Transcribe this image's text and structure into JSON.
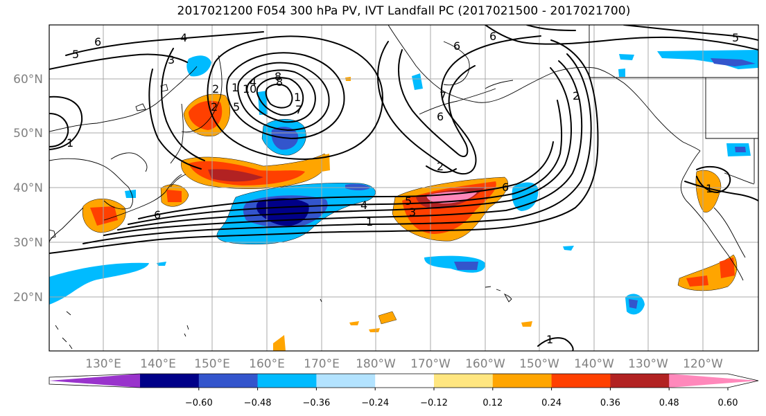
{
  "title": "2017021200 F054 300 hPa PV, IVT Landfall PC (2017021500 - 2017021700)",
  "map": {
    "lat_labels": [
      "60°N",
      "50°N",
      "40°N",
      "30°N",
      "20°N"
    ],
    "lon_labels": [
      "130°E",
      "140°E",
      "150°E",
      "160°E",
      "170°E",
      "180°W",
      "170°W",
      "160°W",
      "150°W",
      "140°W",
      "130°W",
      "120°W"
    ],
    "shaded_field": "IVT Landfall PC",
    "contour_field": "300 hPa PV",
    "contour_labels": [
      "6",
      "5",
      "4",
      "3",
      "2",
      "1",
      "5",
      "10",
      "7",
      "8",
      "6",
      "4",
      "6",
      "1",
      "2",
      "8",
      "4",
      "1",
      "5",
      "3",
      "6",
      "6",
      "2",
      "7",
      "6",
      "1",
      "1",
      "1",
      "2",
      "5"
    ]
  },
  "colorbar": {
    "ticks": [
      "−0.60",
      "−0.48",
      "−0.36",
      "−0.24",
      "−0.12",
      "0.12",
      "0.24",
      "0.36",
      "0.48",
      "0.60"
    ],
    "colors": [
      "#9933cc",
      "#000088",
      "#3355cc",
      "#00bbff",
      "#b3e3ff",
      "#ffffff",
      "#ffe680",
      "#ffa500",
      "#ff4000",
      "#b22222",
      "#ff88bb"
    ]
  }
}
